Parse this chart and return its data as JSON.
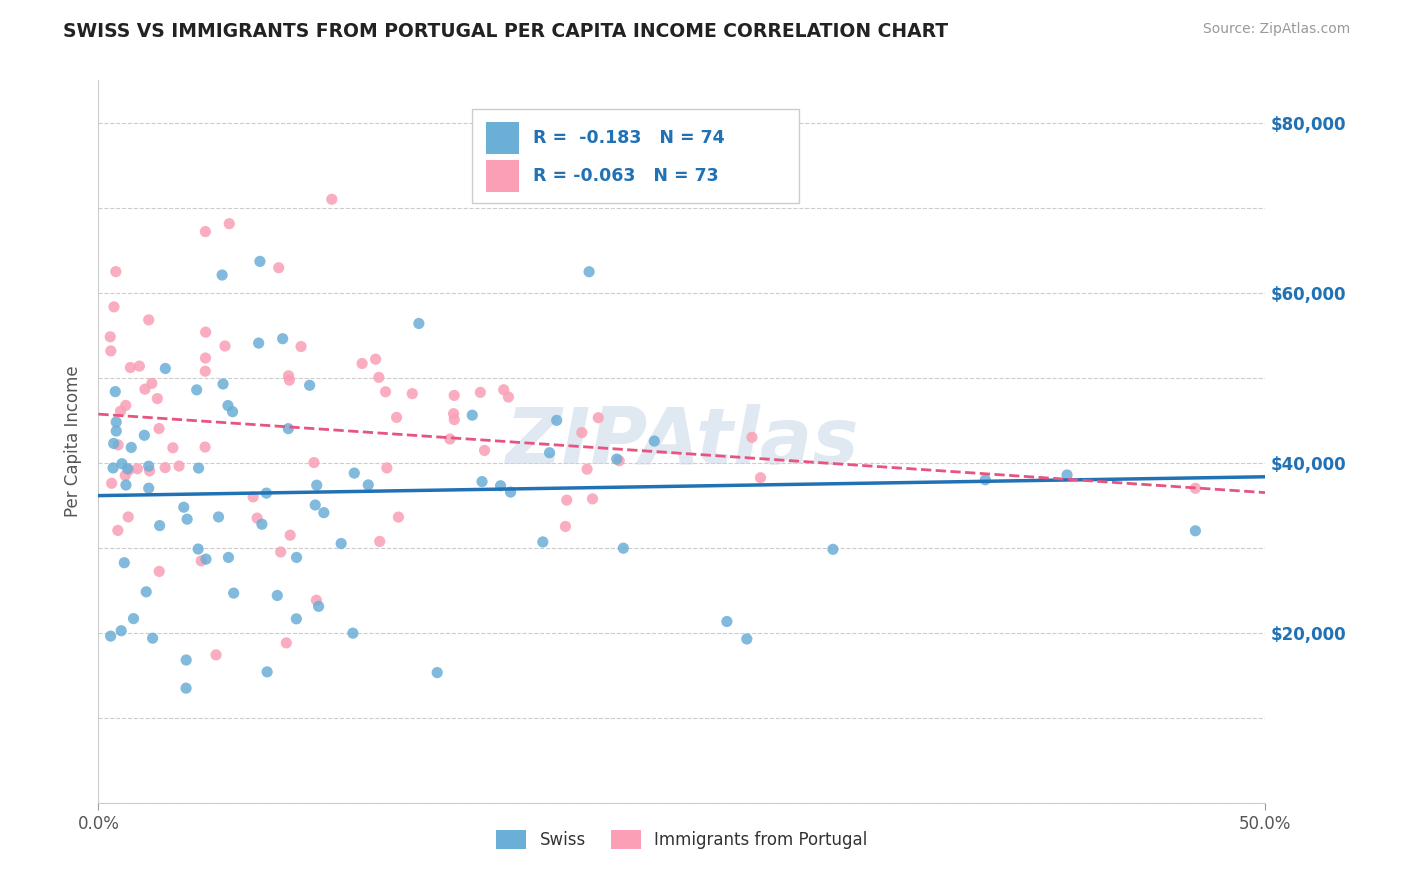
{
  "title": "SWISS VS IMMIGRANTS FROM PORTUGAL PER CAPITA INCOME CORRELATION CHART",
  "source": "Source: ZipAtlas.com",
  "ylabel": "Per Capita Income",
  "legend_bottom_swiss": "Swiss",
  "legend_bottom_portugal": "Immigrants from Portugal",
  "r_swiss": -0.183,
  "n_swiss": 74,
  "r_portugal": -0.063,
  "n_portugal": 73,
  "xlim": [
    0.0,
    0.5
  ],
  "ylim": [
    0,
    85000
  ],
  "ytick_vals": [
    0,
    10000,
    20000,
    30000,
    40000,
    50000,
    60000,
    70000,
    80000
  ],
  "yright_labels": [
    "",
    "",
    "$20,000",
    "",
    "$40,000",
    "",
    "$60,000",
    "",
    "$80,000"
  ],
  "xtick_vals": [
    0.0,
    0.5
  ],
  "xtick_labels": [
    "0.0%",
    "50.0%"
  ],
  "swiss_color": "#6baed6",
  "portugal_color": "#fa9fb5",
  "swiss_line_color": "#2171b5",
  "portugal_line_color": "#e75480",
  "background_color": "#ffffff",
  "grid_color": "#cccccc",
  "watermark": "ZIPAtlas"
}
